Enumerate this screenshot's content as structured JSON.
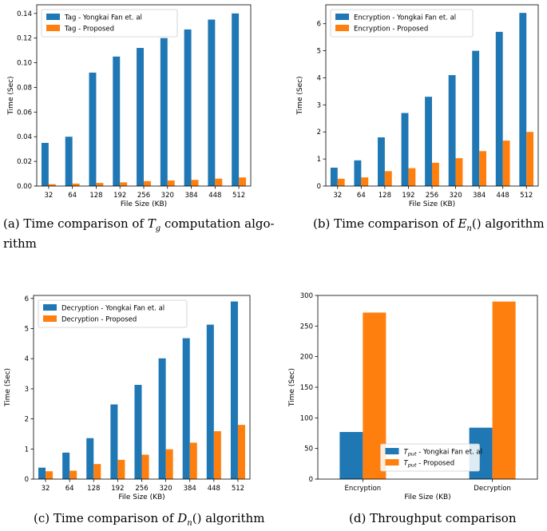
{
  "colors": {
    "series1": "#1f77b4",
    "series2": "#ff7f0e",
    "axis": "#000000"
  },
  "chart_data": [
    {
      "type": "bar",
      "categories": [
        "32",
        "64",
        "128",
        "192",
        "256",
        "320",
        "384",
        "448",
        "512"
      ],
      "series": [
        {
          "name": "Tag - Yongkai Fan et. al",
          "values": [
            0.035,
            0.04,
            0.092,
            0.105,
            0.112,
            0.12,
            0.127,
            0.135,
            0.14
          ]
        },
        {
          "name": "Tag - Proposed",
          "values": [
            0.0015,
            0.002,
            0.0025,
            0.003,
            0.004,
            0.0045,
            0.005,
            0.006,
            0.007
          ]
        }
      ],
      "title": "",
      "xlabel": "File Size (KB)",
      "ylabel": "Time (Sec)",
      "ylim": [
        0,
        0.147
      ],
      "yticks": [
        "0.00",
        "0.02",
        "0.04",
        "0.06",
        "0.08",
        "0.10",
        "0.12",
        "0.14"
      ],
      "ytick_values": [
        0,
        0.02,
        0.04,
        0.06,
        0.08,
        0.1,
        0.12,
        0.14
      ],
      "legend": "top-left",
      "caption": {
        "prefix": "(a) Time comparison of",
        "sym": "T",
        "sub": "g",
        "suffix": "computation algo-",
        "line2": "rithm"
      }
    },
    {
      "type": "bar",
      "categories": [
        "32",
        "64",
        "128",
        "192",
        "256",
        "320",
        "384",
        "448",
        "512"
      ],
      "series": [
        {
          "name": "Encryption - Yongkai Fan et. al",
          "values": [
            0.68,
            0.95,
            1.8,
            2.7,
            3.3,
            4.1,
            5.0,
            5.7,
            6.4
          ]
        },
        {
          "name": "Encryption - Proposed",
          "values": [
            0.27,
            0.32,
            0.55,
            0.66,
            0.86,
            1.03,
            1.29,
            1.68,
            2.0
          ]
        }
      ],
      "title": "",
      "xlabel": "File Size (KB)",
      "ylabel": "Time (Sec)",
      "ylim": [
        0,
        6.7
      ],
      "yticks": [
        "0",
        "1",
        "2",
        "3",
        "4",
        "5",
        "6"
      ],
      "ytick_values": [
        0,
        1,
        2,
        3,
        4,
        5,
        6
      ],
      "legend": "top-left",
      "caption": {
        "prefix": "(b) Time comparison of",
        "sym": "E",
        "sub": "n",
        "suffix": "() algorithm"
      }
    },
    {
      "type": "bar",
      "categories": [
        "32",
        "64",
        "128",
        "192",
        "256",
        "320",
        "384",
        "448",
        "512"
      ],
      "series": [
        {
          "name": "Decryption - Yongkai Fan et. al",
          "values": [
            0.38,
            0.88,
            1.36,
            2.48,
            3.13,
            4.01,
            4.68,
            5.13,
            5.9
          ]
        },
        {
          "name": "Decryption - Proposed",
          "values": [
            0.26,
            0.28,
            0.5,
            0.64,
            0.81,
            0.99,
            1.21,
            1.59,
            1.8
          ]
        }
      ],
      "title": "",
      "xlabel": "File Size (KB)",
      "ylabel": "Time (Sec)",
      "ylim": [
        0,
        6.1
      ],
      "yticks": [
        "0",
        "1",
        "2",
        "3",
        "4",
        "5",
        "6"
      ],
      "ytick_values": [
        0,
        1,
        2,
        3,
        4,
        5,
        6
      ],
      "legend": "top-left",
      "caption": {
        "prefix": "(c) Time comparison of",
        "sym": "D",
        "sub": "n",
        "suffix": "() algorithm"
      }
    },
    {
      "type": "bar",
      "categories": [
        "Encryption",
        "Decryption"
      ],
      "series": [
        {
          "name": "T",
          "sub": "put",
          "rest": " - Yongkai Fan et. al",
          "values": [
            77,
            84
          ]
        },
        {
          "name": "T",
          "sub": "put",
          "rest": " - Proposed",
          "values": [
            272,
            290
          ]
        }
      ],
      "title": "",
      "xlabel": "File Size (KB)",
      "ylabel": "Time (Sec)",
      "ylim": [
        0,
        300
      ],
      "yticks": [
        "0",
        "50",
        "100",
        "150",
        "200",
        "250",
        "300"
      ],
      "ytick_values": [
        0,
        50,
        100,
        150,
        200,
        250,
        300
      ],
      "legend": "bottom-center",
      "caption": {
        "prefix": "(d) Throughput comparison"
      }
    }
  ]
}
